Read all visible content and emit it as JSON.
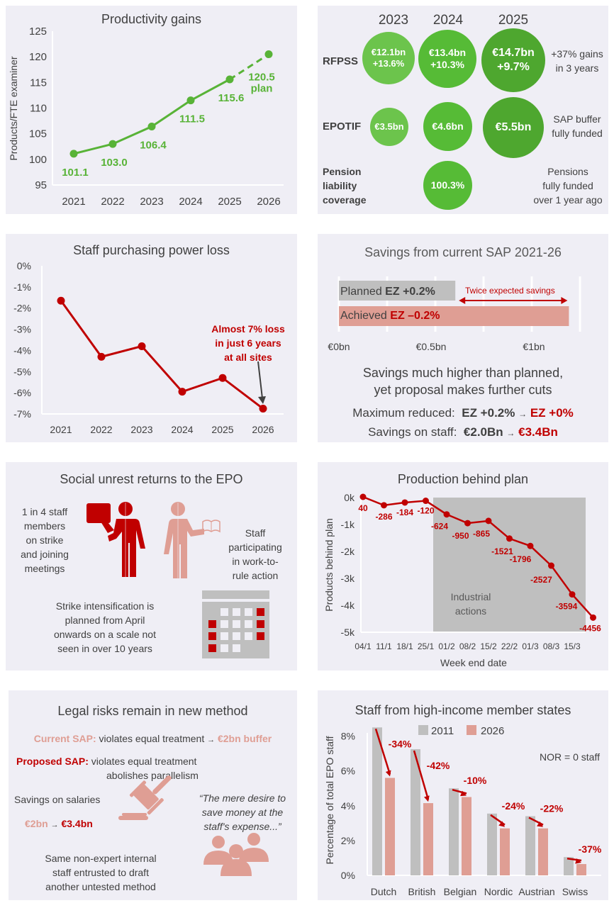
{
  "colors": {
    "panel_bg": "#efeef5",
    "green": "#58b337",
    "green_light": "#6cc44c",
    "green_mid": "#56bb36",
    "green_dark": "#4ea72f",
    "red": "#c00000",
    "salmon": "#df9e94",
    "grey_bar": "#bfbfbf",
    "text": "#404040"
  },
  "panels": {
    "productivity": {
      "title": "Productivity gains"
    },
    "funds": {
      "years": [
        "2023",
        "2024",
        "2025"
      ],
      "rows": [
        {
          "label": "RFPSS",
          "bubbles": [
            {
              "line1": "€12.1bn",
              "line2": "+13.6%"
            },
            {
              "line1": "€13.4bn",
              "line2": "+10.3%"
            },
            {
              "line1": "€14.7bn",
              "line2": "+9.7%"
            }
          ],
          "note": [
            "+37% gains",
            "in 3 years"
          ]
        },
        {
          "label": "EPOTIF",
          "bubbles": [
            {
              "line1": "€3.5bn"
            },
            {
              "line1": "€4.6bn"
            },
            {
              "line1": "€5.5bn"
            }
          ],
          "note": [
            "SAP buffer",
            "fully funded"
          ]
        },
        {
          "label": [
            "Pension",
            "liability",
            "coverage"
          ],
          "bubbles": [
            {
              "line1": "100.3%"
            }
          ],
          "note": [
            "Pensions",
            "fully funded",
            "over 1 year ago"
          ]
        }
      ]
    },
    "purchasing": {
      "title": "Staff purchasing power loss",
      "annotation": [
        "Almost 7% loss",
        "in just 6 years",
        "at all sites"
      ]
    },
    "savings": {
      "title": "Savings from current SAP 2021-26",
      "bars": [
        {
          "prefix": "Planned ",
          "bold": "EZ +0.2%",
          "value": 0.6
        },
        {
          "prefix": "Achieved ",
          "bold": "EZ –0.2%",
          "value": 1.2
        }
      ],
      "arrow_label": "Twice expected savings",
      "axis_ticks": [
        "€0bn",
        "€0.5bn",
        "€1bn"
      ],
      "message": [
        "Savings much higher than planned,",
        "yet proposal makes further cuts"
      ],
      "lines": [
        {
          "label": "Maximum reduced:",
          "from": "EZ +0.2%",
          "to": "EZ +0%"
        },
        {
          "label": "Savings on staff:",
          "from": "€2.0Bn",
          "to": "€3.4Bn"
        }
      ],
      "arrow_glyph": "→"
    },
    "unrest": {
      "title": "Social unrest returns to the EPO",
      "left_text": [
        "1 in 4 staff",
        "members",
        "on strike",
        "and joining",
        "meetings"
      ],
      "right_text": [
        "Staff",
        "participating",
        "in work-to-",
        "rule action"
      ],
      "bottom_text": [
        "Strike intensification is",
        "planned from April",
        "onwards on a scale not",
        "seen in over 10 years"
      ]
    },
    "production": {
      "title": "Production behind plan",
      "shaded_label": [
        "Industrial",
        "actions"
      ]
    },
    "legal": {
      "title": "Legal risks remain in new method",
      "current_label": "Current SAP:",
      "current_text": " violates equal treatment ",
      "current_result": "€2bn buffer",
      "proposed_label": "Proposed SAP:",
      "proposed_text": [
        " violates equal treatment",
        "abolishes parallelism"
      ],
      "savings_label": "Savings on salaries",
      "savings_from": "€2bn",
      "savings_to": "€3.4bn",
      "quote": [
        "“The mere desire to",
        "save money at the",
        "staff's expense...”"
      ],
      "bottom_text": [
        "Same non-expert internal",
        "staff entrusted to draft",
        "another untested method"
      ],
      "arrow_glyph": "→"
    },
    "highincome": {
      "title": "Staff from high-income member states",
      "note": "NOR = 0 staff"
    }
  },
  "chart_data": [
    {
      "id": "productivity",
      "type": "line",
      "title": "Productivity gains",
      "xlabel": "",
      "ylabel": "Products/FTE examiner",
      "x": [
        "2021",
        "2022",
        "2023",
        "2024",
        "2025",
        "2026"
      ],
      "values": [
        101.1,
        103.0,
        106.4,
        111.5,
        115.6,
        120.5
      ],
      "labels": [
        "101.1",
        "103.0",
        "106.4",
        "111.5",
        "115.6",
        "120.5"
      ],
      "plan_label": "plan",
      "dashed_from_index": 4,
      "ylim": [
        95,
        125
      ],
      "yticks": [
        95,
        100,
        105,
        110,
        115,
        120,
        125
      ],
      "grid": false
    },
    {
      "id": "purchasing",
      "type": "line",
      "title": "Staff purchasing power loss",
      "xlabel": "",
      "ylabel": "",
      "x": [
        "2021",
        "2022",
        "2023",
        "2024",
        "2025",
        "2026"
      ],
      "values": [
        -1.65,
        -4.3,
        -3.8,
        -5.95,
        -5.3,
        -6.75
      ],
      "ylim": [
        -7,
        0
      ],
      "yticks": [
        "0%",
        "-1%",
        "-2%",
        "-3%",
        "-4%",
        "-5%",
        "-6%",
        "-7%"
      ],
      "grid": false
    },
    {
      "id": "savings",
      "type": "bar",
      "title": "Savings from current SAP 2021-26",
      "categories": [
        "Planned",
        "Achieved"
      ],
      "values": [
        0.6,
        1.2
      ],
      "xlabel": "",
      "xlim": [
        0,
        1.25
      ],
      "xticks": [
        "€0bn",
        "€0.5bn",
        "€1bn"
      ],
      "orientation": "horizontal"
    },
    {
      "id": "production",
      "type": "line",
      "title": "Production behind plan",
      "xlabel": "Week end date",
      "ylabel": "Products behind plan",
      "x": [
        "04/1",
        "11/1",
        "18/1",
        "25/1",
        "01/2",
        "08/2",
        "15/2",
        "22/2",
        "01/3",
        "08/3",
        "15/3",
        ""
      ],
      "values": [
        40,
        -286,
        -184,
        -120,
        -624,
        -950,
        -865,
        -1521,
        -1796,
        -2527,
        -3594,
        -4456
      ],
      "ylim": [
        -5000,
        0
      ],
      "yticks": [
        "0k",
        "-1k",
        "-2k",
        "-3k",
        "-4k",
        "-5k"
      ],
      "shaded_from_index": 3.5,
      "shaded_label": "Industrial actions",
      "grid": false
    },
    {
      "id": "highincome",
      "type": "bar",
      "title": "Staff from high-income member states",
      "categories": [
        "Dutch",
        "British",
        "Belgian",
        "Nordic",
        "Austrian",
        "Swiss"
      ],
      "series": [
        {
          "name": "2011",
          "values": [
            8.5,
            7.25,
            5.0,
            3.55,
            3.4,
            1.05
          ]
        },
        {
          "name": "2026",
          "values": [
            5.6,
            4.15,
            4.5,
            2.7,
            2.7,
            0.65
          ]
        }
      ],
      "change_labels": [
        "-34%",
        "-42%",
        "-10%",
        "-24%",
        "-22%",
        "-37%"
      ],
      "ylabel": "Percentage of total EPO staff",
      "ylim": [
        0,
        9
      ],
      "yticks": [
        "0%",
        "2%",
        "4%",
        "6%",
        "8%"
      ],
      "legend": "top-center",
      "annotation": "NOR = 0 staff",
      "grid": false
    }
  ]
}
